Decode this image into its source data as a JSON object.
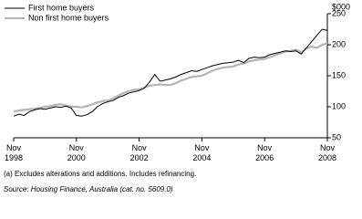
{
  "chart_data": {
    "type": "line",
    "y_unit_label": "$000",
    "x": [
      "Nov 1998",
      "Jan 1999",
      "Mar 1999",
      "May 1999",
      "Jul 1999",
      "Sep 1999",
      "Nov 1999",
      "Jan 2000",
      "Mar 2000",
      "May 2000",
      "Jul 2000",
      "Sep 2000",
      "Nov 2000",
      "Jan 2001",
      "Mar 2001",
      "May 2001",
      "Jul 2001",
      "Sep 2001",
      "Nov 2001",
      "Jan 2002",
      "Mar 2002",
      "May 2002",
      "Jul 2002",
      "Sep 2002",
      "Nov 2002",
      "Jan 2003",
      "Mar 2003",
      "May 2003",
      "Jul 2003",
      "Sep 2003",
      "Nov 2003",
      "Jan 2004",
      "Mar 2004",
      "May 2004",
      "Jul 2004",
      "Sep 2004",
      "Nov 2004",
      "Jan 2005",
      "Mar 2005",
      "May 2005",
      "Jul 2005",
      "Sep 2005",
      "Nov 2005",
      "Jan 2006",
      "Mar 2006",
      "May 2006",
      "Jul 2006",
      "Sep 2006",
      "Nov 2006",
      "Jan 2007",
      "Mar 2007",
      "May 2007",
      "Jul 2007",
      "Sep 2007",
      "Nov 2007",
      "Jan 2008",
      "Mar 2008",
      "May 2008",
      "Jul 2008",
      "Sep 2008",
      "Nov 2008"
    ],
    "series": [
      {
        "name": "First home buyers",
        "color": "#000000",
        "values": [
          85,
          88,
          86,
          92,
          95,
          97,
          96,
          98,
          100,
          99,
          101,
          98,
          86,
          85,
          87,
          92,
          100,
          105,
          108,
          110,
          115,
          118,
          122,
          124,
          126,
          130,
          140,
          152,
          141,
          143,
          145,
          148,
          152,
          155,
          158,
          157,
          160,
          163,
          166,
          168,
          170,
          171,
          172,
          175,
          171,
          178,
          180,
          179,
          180,
          184,
          186,
          188,
          190,
          189,
          190,
          185,
          195,
          205,
          215,
          225,
          223
        ]
      },
      {
        "name": "Non first home buyers",
        "color": "#b4b4b4",
        "values": [
          92,
          94,
          95,
          96,
          97,
          98,
          100,
          101,
          103,
          104,
          102,
          100,
          100,
          99,
          101,
          104,
          107,
          109,
          110,
          113,
          118,
          122,
          125,
          127,
          128,
          131,
          134,
          135,
          136,
          135,
          135,
          138,
          142,
          145,
          148,
          149,
          150,
          154,
          158,
          161,
          163,
          164,
          165,
          168,
          170,
          173,
          175,
          176,
          177,
          180,
          183,
          186,
          189,
          190,
          192,
          188,
          194,
          197,
          195,
          200,
          202
        ]
      }
    ],
    "xticks": [
      "Nov 1998",
      "Nov 2000",
      "Nov 2002",
      "Nov 2004",
      "Nov 2006",
      "Nov 2008"
    ],
    "ylim": [
      50,
      250
    ],
    "yticks": [
      50,
      100,
      150,
      200,
      250
    ],
    "notes": [
      "(a) Excludes alterations and additions. Includes refinancing.",
      "Source: Housing Finance, Australia (cat. no. 5609.0)"
    ]
  }
}
